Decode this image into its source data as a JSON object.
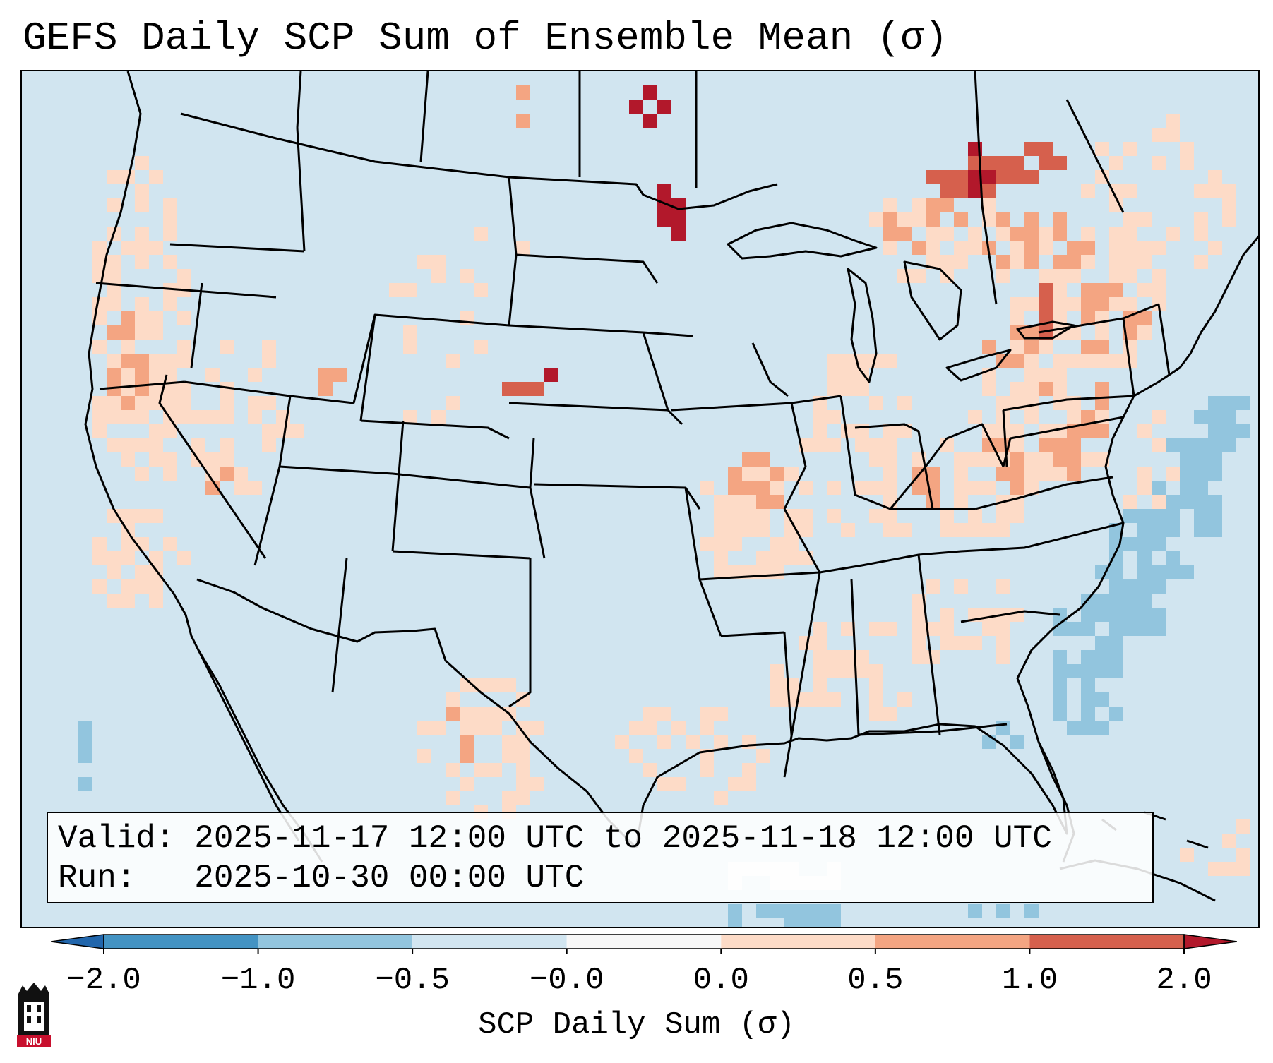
{
  "title": "GEFS Daily SCP Sum of Ensemble Mean (σ)",
  "info": {
    "valid_label": "Valid:",
    "valid_range": "2025-11-17 12:00 UTC to 2025-11-18 12:00 UTC",
    "run_label": "Run:",
    "run_time": "2025-10-30 00:00 UTC"
  },
  "colorbar": {
    "label": "SCP Daily Sum (σ)",
    "ticks": [
      "−2.0",
      "−1.0",
      "−0.5",
      "−0.0",
      "0.0",
      "0.5",
      "1.0",
      "2.0"
    ],
    "colors": [
      "#4393c3",
      "#92c5de",
      "#d1e5f0",
      "#f7f7f7",
      "#fddbc7",
      "#f4a582",
      "#d6604d"
    ],
    "under_color": "#2166ac",
    "over_color": "#b2182b"
  },
  "map": {
    "background_color": "#d1e5f0",
    "line_color": "#000000",
    "regions": [
      "Pacific Northwest coast",
      "California",
      "Nevada",
      "Utah",
      "Montana",
      "North Dakota",
      "Minnesota",
      "Nebraska",
      "Colorado",
      "Missouri",
      "Kentucky",
      "Ohio",
      "Pennsylvania",
      "New York",
      "Ontario",
      "Quebec",
      "Texas",
      "Louisiana",
      "Alabama",
      "Georgia",
      "Atlantic offshore"
    ]
  },
  "logo": {
    "text": "NIU",
    "color": "#c8102e"
  }
}
